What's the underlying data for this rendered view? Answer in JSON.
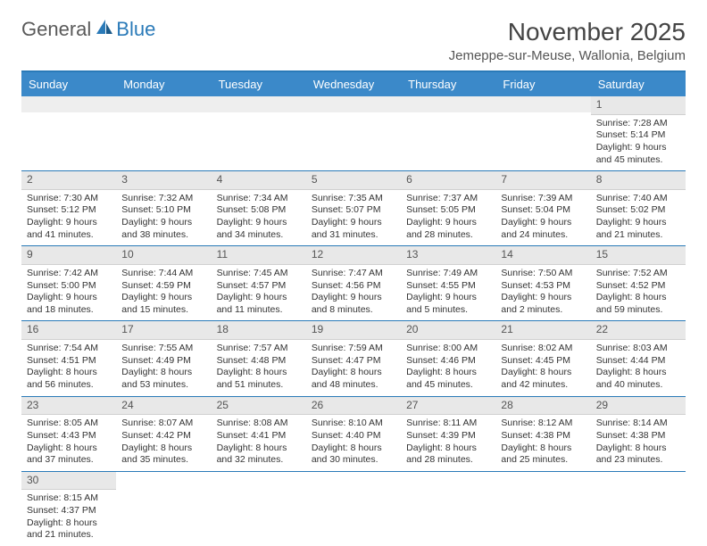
{
  "logo": {
    "text1": "General",
    "text2": "Blue"
  },
  "title": "November 2025",
  "location": "Jemeppe-sur-Meuse, Wallonia, Belgium",
  "dayNames": [
    "Sunday",
    "Monday",
    "Tuesday",
    "Wednesday",
    "Thursday",
    "Friday",
    "Saturday"
  ],
  "colors": {
    "header_bg": "#3b89c9",
    "border": "#2a7ab8",
    "daynum_bg": "#e8e8e8"
  },
  "weeks": [
    [
      {
        "blank": true
      },
      {
        "blank": true
      },
      {
        "blank": true
      },
      {
        "blank": true
      },
      {
        "blank": true
      },
      {
        "blank": true
      },
      {
        "n": "1",
        "sunrise": "Sunrise: 7:28 AM",
        "sunset": "Sunset: 5:14 PM",
        "day1": "Daylight: 9 hours",
        "day2": "and 45 minutes."
      }
    ],
    [
      {
        "n": "2",
        "sunrise": "Sunrise: 7:30 AM",
        "sunset": "Sunset: 5:12 PM",
        "day1": "Daylight: 9 hours",
        "day2": "and 41 minutes."
      },
      {
        "n": "3",
        "sunrise": "Sunrise: 7:32 AM",
        "sunset": "Sunset: 5:10 PM",
        "day1": "Daylight: 9 hours",
        "day2": "and 38 minutes."
      },
      {
        "n": "4",
        "sunrise": "Sunrise: 7:34 AM",
        "sunset": "Sunset: 5:08 PM",
        "day1": "Daylight: 9 hours",
        "day2": "and 34 minutes."
      },
      {
        "n": "5",
        "sunrise": "Sunrise: 7:35 AM",
        "sunset": "Sunset: 5:07 PM",
        "day1": "Daylight: 9 hours",
        "day2": "and 31 minutes."
      },
      {
        "n": "6",
        "sunrise": "Sunrise: 7:37 AM",
        "sunset": "Sunset: 5:05 PM",
        "day1": "Daylight: 9 hours",
        "day2": "and 28 minutes."
      },
      {
        "n": "7",
        "sunrise": "Sunrise: 7:39 AM",
        "sunset": "Sunset: 5:04 PM",
        "day1": "Daylight: 9 hours",
        "day2": "and 24 minutes."
      },
      {
        "n": "8",
        "sunrise": "Sunrise: 7:40 AM",
        "sunset": "Sunset: 5:02 PM",
        "day1": "Daylight: 9 hours",
        "day2": "and 21 minutes."
      }
    ],
    [
      {
        "n": "9",
        "sunrise": "Sunrise: 7:42 AM",
        "sunset": "Sunset: 5:00 PM",
        "day1": "Daylight: 9 hours",
        "day2": "and 18 minutes."
      },
      {
        "n": "10",
        "sunrise": "Sunrise: 7:44 AM",
        "sunset": "Sunset: 4:59 PM",
        "day1": "Daylight: 9 hours",
        "day2": "and 15 minutes."
      },
      {
        "n": "11",
        "sunrise": "Sunrise: 7:45 AM",
        "sunset": "Sunset: 4:57 PM",
        "day1": "Daylight: 9 hours",
        "day2": "and 11 minutes."
      },
      {
        "n": "12",
        "sunrise": "Sunrise: 7:47 AM",
        "sunset": "Sunset: 4:56 PM",
        "day1": "Daylight: 9 hours",
        "day2": "and 8 minutes."
      },
      {
        "n": "13",
        "sunrise": "Sunrise: 7:49 AM",
        "sunset": "Sunset: 4:55 PM",
        "day1": "Daylight: 9 hours",
        "day2": "and 5 minutes."
      },
      {
        "n": "14",
        "sunrise": "Sunrise: 7:50 AM",
        "sunset": "Sunset: 4:53 PM",
        "day1": "Daylight: 9 hours",
        "day2": "and 2 minutes."
      },
      {
        "n": "15",
        "sunrise": "Sunrise: 7:52 AM",
        "sunset": "Sunset: 4:52 PM",
        "day1": "Daylight: 8 hours",
        "day2": "and 59 minutes."
      }
    ],
    [
      {
        "n": "16",
        "sunrise": "Sunrise: 7:54 AM",
        "sunset": "Sunset: 4:51 PM",
        "day1": "Daylight: 8 hours",
        "day2": "and 56 minutes."
      },
      {
        "n": "17",
        "sunrise": "Sunrise: 7:55 AM",
        "sunset": "Sunset: 4:49 PM",
        "day1": "Daylight: 8 hours",
        "day2": "and 53 minutes."
      },
      {
        "n": "18",
        "sunrise": "Sunrise: 7:57 AM",
        "sunset": "Sunset: 4:48 PM",
        "day1": "Daylight: 8 hours",
        "day2": "and 51 minutes."
      },
      {
        "n": "19",
        "sunrise": "Sunrise: 7:59 AM",
        "sunset": "Sunset: 4:47 PM",
        "day1": "Daylight: 8 hours",
        "day2": "and 48 minutes."
      },
      {
        "n": "20",
        "sunrise": "Sunrise: 8:00 AM",
        "sunset": "Sunset: 4:46 PM",
        "day1": "Daylight: 8 hours",
        "day2": "and 45 minutes."
      },
      {
        "n": "21",
        "sunrise": "Sunrise: 8:02 AM",
        "sunset": "Sunset: 4:45 PM",
        "day1": "Daylight: 8 hours",
        "day2": "and 42 minutes."
      },
      {
        "n": "22",
        "sunrise": "Sunrise: 8:03 AM",
        "sunset": "Sunset: 4:44 PM",
        "day1": "Daylight: 8 hours",
        "day2": "and 40 minutes."
      }
    ],
    [
      {
        "n": "23",
        "sunrise": "Sunrise: 8:05 AM",
        "sunset": "Sunset: 4:43 PM",
        "day1": "Daylight: 8 hours",
        "day2": "and 37 minutes."
      },
      {
        "n": "24",
        "sunrise": "Sunrise: 8:07 AM",
        "sunset": "Sunset: 4:42 PM",
        "day1": "Daylight: 8 hours",
        "day2": "and 35 minutes."
      },
      {
        "n": "25",
        "sunrise": "Sunrise: 8:08 AM",
        "sunset": "Sunset: 4:41 PM",
        "day1": "Daylight: 8 hours",
        "day2": "and 32 minutes."
      },
      {
        "n": "26",
        "sunrise": "Sunrise: 8:10 AM",
        "sunset": "Sunset: 4:40 PM",
        "day1": "Daylight: 8 hours",
        "day2": "and 30 minutes."
      },
      {
        "n": "27",
        "sunrise": "Sunrise: 8:11 AM",
        "sunset": "Sunset: 4:39 PM",
        "day1": "Daylight: 8 hours",
        "day2": "and 28 minutes."
      },
      {
        "n": "28",
        "sunrise": "Sunrise: 8:12 AM",
        "sunset": "Sunset: 4:38 PM",
        "day1": "Daylight: 8 hours",
        "day2": "and 25 minutes."
      },
      {
        "n": "29",
        "sunrise": "Sunrise: 8:14 AM",
        "sunset": "Sunset: 4:38 PM",
        "day1": "Daylight: 8 hours",
        "day2": "and 23 minutes."
      }
    ],
    [
      {
        "n": "30",
        "sunrise": "Sunrise: 8:15 AM",
        "sunset": "Sunset: 4:37 PM",
        "day1": "Daylight: 8 hours",
        "day2": "and 21 minutes."
      },
      {
        "blank": true
      },
      {
        "blank": true
      },
      {
        "blank": true
      },
      {
        "blank": true
      },
      {
        "blank": true
      },
      {
        "blank": true
      }
    ]
  ]
}
